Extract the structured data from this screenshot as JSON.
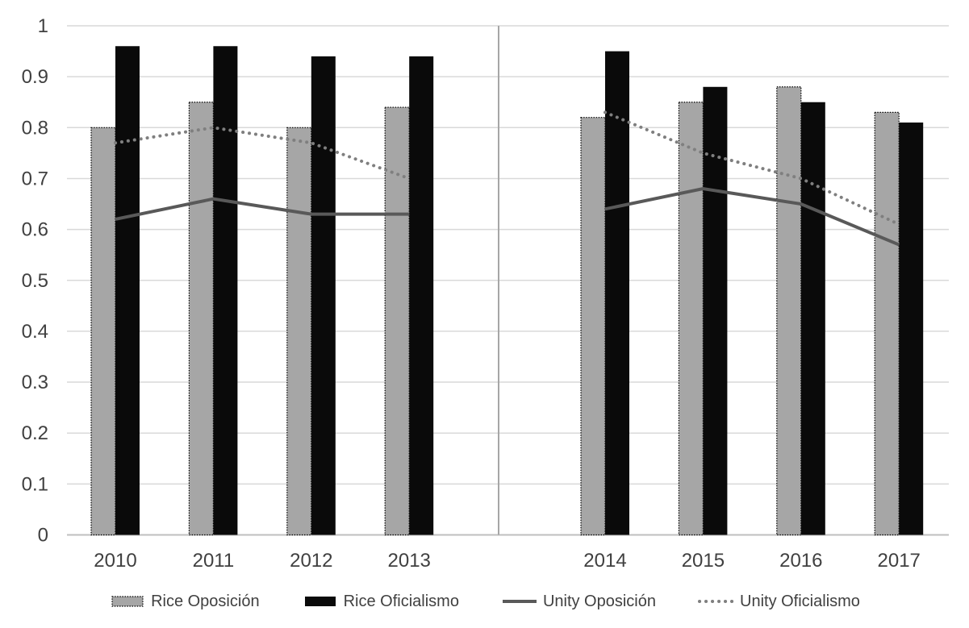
{
  "chart_data": {
    "type": "bar-line-combo",
    "title": "",
    "categories": [
      "2010",
      "2011",
      "2012",
      "2013",
      "2014",
      "2015",
      "2016",
      "2017"
    ],
    "group_split_index": 4,
    "series": [
      {
        "name": "Rice Oposición",
        "type": "bar",
        "color": "#a6a6a6",
        "outline": "dotted-black",
        "values": [
          0.8,
          0.85,
          0.8,
          0.84,
          0.82,
          0.85,
          0.88,
          0.83
        ]
      },
      {
        "name": "Rice Oficialismo",
        "type": "bar",
        "color": "#0a0a0a",
        "outline": "none",
        "values": [
          0.96,
          0.96,
          0.94,
          0.94,
          0.95,
          0.88,
          0.85,
          0.81
        ]
      },
      {
        "name": "Unity Oposición",
        "type": "line",
        "line_style": "solid",
        "color": "#595959",
        "values": [
          0.62,
          0.66,
          0.63,
          0.63,
          0.64,
          0.68,
          0.65,
          0.57
        ]
      },
      {
        "name": "Unity Oficialismo",
        "type": "line",
        "line_style": "dotted",
        "color": "#7f7f7f",
        "values": [
          0.77,
          0.8,
          0.77,
          0.7,
          0.83,
          0.75,
          0.7,
          0.61
        ]
      }
    ],
    "y_axis": {
      "min": 0,
      "max": 1,
      "tick_labels": [
        "0",
        "0.1",
        "0.2",
        "0.3",
        "0.4",
        "0.5",
        "0.6",
        "0.7",
        "0.8",
        "0.9",
        "1"
      ]
    },
    "x_axis": {
      "tick_labels": [
        "2010",
        "2011",
        "2012",
        "2013",
        "2014",
        "2015",
        "2016",
        "2017"
      ]
    },
    "grid": true,
    "legend_position": "bottom",
    "colors": {
      "gridline": "#d9d9d9",
      "axis_line": "#bfbfbf",
      "group_separator": "#a6a6a6",
      "axis_text": "#404040"
    }
  }
}
